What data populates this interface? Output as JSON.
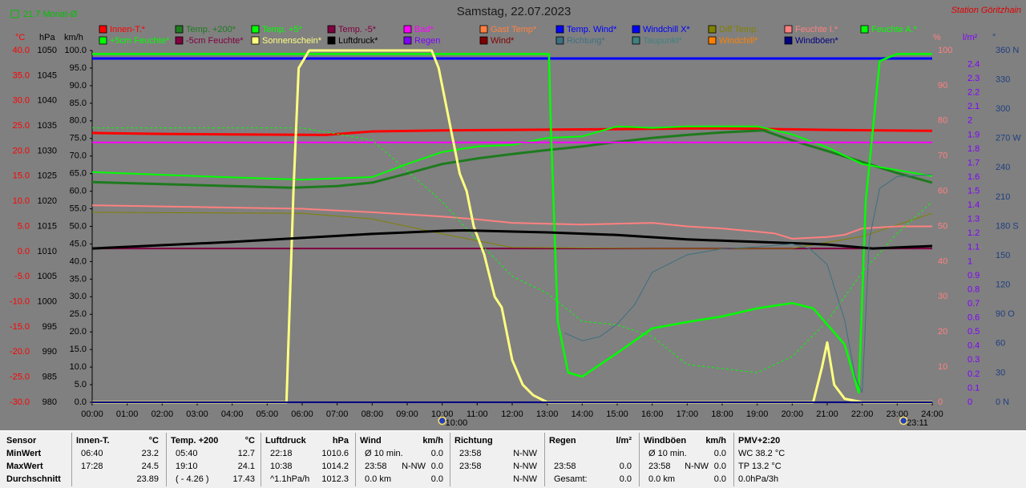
{
  "header": {
    "monthly": "21.7 Monat-Ø",
    "station": "Station Göritzhain"
  },
  "chart_data": {
    "type": "line",
    "title": "Samstag, 22.07.2023",
    "xlim": [
      0,
      24
    ],
    "xticks": [
      {
        "value": 0,
        "label": "00:00"
      },
      {
        "value": 1,
        "label": "01:00"
      },
      {
        "value": 2,
        "label": "02:00"
      },
      {
        "value": 3,
        "label": "03:00"
      },
      {
        "value": 4,
        "label": "04:00"
      },
      {
        "value": 5,
        "label": "05:00"
      },
      {
        "value": 6,
        "label": "06:00"
      },
      {
        "value": 7,
        "label": "07:00"
      },
      {
        "value": 8,
        "label": "08:00"
      },
      {
        "value": 9,
        "label": "09:00"
      },
      {
        "value": 10,
        "label": "10:00"
      },
      {
        "value": 11,
        "label": "11:00"
      },
      {
        "value": 12,
        "label": "12:00"
      },
      {
        "value": 13,
        "label": "13:00"
      },
      {
        "value": 14,
        "label": "14:00"
      },
      {
        "value": 15,
        "label": "15:00"
      },
      {
        "value": 16,
        "label": "16:00"
      },
      {
        "value": 17,
        "label": "17:00"
      },
      {
        "value": 18,
        "label": "18:00"
      },
      {
        "value": 19,
        "label": "19:00"
      },
      {
        "value": 20,
        "label": "20:00"
      },
      {
        "value": 21,
        "label": "21:00"
      },
      {
        "value": 22,
        "label": "22:00"
      },
      {
        "value": 23,
        "label": "23:00"
      },
      {
        "value": 24,
        "label": "24:00"
      }
    ],
    "markers": [
      {
        "x": 10,
        "label": "10:00"
      },
      {
        "x": 23.18,
        "label": "23:11"
      }
    ],
    "ylabel": "km/h",
    "ycolor": "#000000",
    "ylim": [
      0,
      100
    ],
    "yticks": [
      {
        "value": 0,
        "label": "0.0"
      },
      {
        "value": 5,
        "label": "5.0"
      },
      {
        "value": 10,
        "label": "10.0"
      },
      {
        "value": 15,
        "label": "15.0"
      },
      {
        "value": 20,
        "label": "20.0"
      },
      {
        "value": 25,
        "label": "25.0"
      },
      {
        "value": 30,
        "label": "30.0"
      },
      {
        "value": 35,
        "label": "35.0"
      },
      {
        "value": 40,
        "label": "40.0"
      },
      {
        "value": 45,
        "label": "45.0"
      },
      {
        "value": 50,
        "label": "50.0"
      },
      {
        "value": 55,
        "label": "55.0"
      },
      {
        "value": 60,
        "label": "60.0"
      },
      {
        "value": 65,
        "label": "65.0"
      },
      {
        "value": 70,
        "label": "70.0"
      },
      {
        "value": 75,
        "label": "75.0"
      },
      {
        "value": 80,
        "label": "80.0"
      },
      {
        "value": 85,
        "label": "85.0"
      },
      {
        "value": 90,
        "label": "90.0"
      },
      {
        "value": 95,
        "label": "95.0"
      },
      {
        "value": 100,
        "label": "100.0"
      }
    ],
    "y2label": "°C",
    "y2color": "#ff0000",
    "y2lim": [
      -30,
      40
    ],
    "y2ticks": [
      {
        "value": -30,
        "label": "-30.0"
      },
      {
        "value": -25,
        "label": "-25.0"
      },
      {
        "value": -20,
        "label": "-20.0"
      },
      {
        "value": -15,
        "label": "-15.0"
      },
      {
        "value": -10,
        "label": "-10.0"
      },
      {
        "value": -5,
        "label": "-5.0"
      },
      {
        "value": 0,
        "label": "0.0"
      },
      {
        "value": 5,
        "label": "5.0"
      },
      {
        "value": 10,
        "label": "10.0"
      },
      {
        "value": 15,
        "label": "15.0"
      },
      {
        "value": 20,
        "label": "20.0"
      },
      {
        "value": 25,
        "label": "25.0"
      },
      {
        "value": 30,
        "label": "30.0"
      },
      {
        "value": 35,
        "label": "35.0"
      },
      {
        "value": 40,
        "label": "40.0"
      }
    ],
    "y3label": "hPa",
    "y3color": "#000000",
    "y3lim": [
      980,
      1050
    ],
    "y3ticks": [
      980,
      985,
      990,
      995,
      1000,
      1005,
      1010,
      1015,
      1020,
      1025,
      1030,
      1035,
      1040,
      1045,
      1050
    ],
    "y4label": "%",
    "y4color": "#ff8080",
    "y4lim": [
      0,
      100
    ],
    "y4ticks": [
      0,
      10,
      20,
      30,
      40,
      50,
      60,
      70,
      80,
      90,
      100
    ],
    "y5label": "l/m²",
    "y5color": "#8000ff",
    "y5lim": [
      0,
      2.5
    ],
    "y5ticks": [
      0,
      0.1,
      0.2,
      0.3,
      0.4,
      0.5,
      0.6,
      0.7,
      0.8,
      0.9,
      1,
      1.1,
      1.2,
      1.3,
      1.4,
      1.5,
      1.6,
      1.7,
      1.8,
      1.9,
      2,
      2.1,
      2.2,
      2.3,
      2.4
    ],
    "y6label": "°",
    "y6color": "#1f3f7f",
    "y6lim": [
      0,
      360
    ],
    "y6ticks": [
      {
        "value": 0,
        "label": "0 N"
      },
      {
        "value": 30,
        "label": "30"
      },
      {
        "value": 60,
        "label": "60"
      },
      {
        "value": 90,
        "label": "90 O"
      },
      {
        "value": 120,
        "label": "120"
      },
      {
        "value": 150,
        "label": "150"
      },
      {
        "value": 180,
        "label": "180 S"
      },
      {
        "value": 210,
        "label": "210"
      },
      {
        "value": 240,
        "label": "240"
      },
      {
        "value": 270,
        "label": "270 W"
      },
      {
        "value": 300,
        "label": "300"
      },
      {
        "value": 330,
        "label": "330"
      },
      {
        "value": 360,
        "label": "360 N"
      }
    ],
    "series": [
      {
        "name": "Innen-T.*",
        "color": "#ff0000",
        "axis": "y2",
        "x": [
          0,
          2,
          4,
          6.67,
          8,
          10,
          12,
          14,
          16,
          17.47,
          19,
          21,
          24
        ],
        "values": [
          23.6,
          23.4,
          23.3,
          23.2,
          23.9,
          24.1,
          24.2,
          24.3,
          24.4,
          24.5,
          24.4,
          24.2,
          24.0
        ]
      },
      {
        "name": "Temp. +200*",
        "color": "#1e7a1e",
        "axis": "y2",
        "x": [
          0,
          2,
          4,
          5.67,
          7,
          8,
          9,
          10,
          11,
          12,
          13,
          14,
          15,
          16,
          17,
          18,
          19.17,
          20,
          21,
          22,
          23,
          24
        ],
        "values": [
          13.8,
          13.4,
          13.0,
          12.7,
          13.0,
          13.7,
          15.5,
          17.4,
          18.5,
          19.4,
          20.2,
          20.9,
          21.8,
          22.6,
          23.2,
          23.7,
          24.1,
          22.1,
          20.0,
          17.8,
          15.6,
          13.7
        ]
      },
      {
        "name": "Temp. +5*",
        "color": "#00ff00",
        "axis": "y2",
        "x": [
          0,
          3,
          6,
          8,
          9,
          10,
          11,
          12,
          13,
          14,
          15,
          16,
          17,
          18,
          19,
          20,
          21,
          22,
          23,
          24
        ],
        "values": [
          15.8,
          15.0,
          14.3,
          14.8,
          17.4,
          19.8,
          20.9,
          21.2,
          22.6,
          22.9,
          24.9,
          24.6,
          24.9,
          24.9,
          24.9,
          23.3,
          20.7,
          17.4,
          16.2,
          15.0
        ]
      },
      {
        "name": "Temp. -5*",
        "color": "#800040",
        "axis": "y2",
        "x": [
          0,
          24
        ],
        "values": [
          0.6,
          0.6
        ]
      },
      {
        "name": "Bad*",
        "color": "#ff00ff",
        "axis": "y2",
        "x": [
          0,
          24
        ],
        "values": [
          21.7,
          21.7
        ]
      },
      {
        "name": "Gast Temp*",
        "color": "#ff8040",
        "axis": "y2",
        "x": [],
        "values": []
      },
      {
        "name": "Temp. Wind*",
        "color": "#0000ff",
        "axis": "y2",
        "x": [
          0,
          24
        ],
        "values": [
          38.4,
          38.4
        ]
      },
      {
        "name": "Windchill X*",
        "color": "#0000ff",
        "axis": "y2",
        "x": [],
        "values": []
      },
      {
        "name": "Diff Temp.",
        "color": "#808000",
        "axis": "y2",
        "x": [
          0,
          6,
          8,
          10,
          12,
          16,
          20,
          22,
          24
        ],
        "values": [
          7.8,
          7.6,
          6.5,
          3.5,
          0.8,
          0.6,
          0.6,
          3.0,
          7.6
        ]
      },
      {
        "name": "Feuchte I.*",
        "color": "#ff8080",
        "axis": "y4",
        "x": [
          0,
          6,
          8,
          10,
          11,
          12,
          14,
          16,
          17,
          18,
          19,
          19.5,
          20,
          21,
          21.5,
          22,
          23,
          24
        ],
        "values": [
          56,
          55,
          54,
          52.8,
          52,
          51,
          50.5,
          51,
          50,
          49.4,
          48.5,
          48,
          46.5,
          47,
          47.6,
          49.4,
          50,
          50
        ]
      },
      {
        "name": "Feuchte A.*",
        "color": "#00ff00",
        "axis": "y4",
        "x": [
          0,
          13.05,
          13.1,
          13.3,
          13.6,
          14,
          15,
          16,
          17,
          18,
          19,
          20,
          20.6,
          21.5,
          21.9,
          22.1,
          22.5,
          23,
          24
        ],
        "values": [
          99,
          99,
          80,
          23,
          8.4,
          7.3,
          14,
          21,
          22.8,
          24.4,
          26.7,
          28.2,
          26.7,
          16.4,
          2.7,
          57,
          97,
          99,
          99
        ]
      },
      {
        "name": "+5cm Feuchte*",
        "color": "#00ff00",
        "axis": "y4",
        "style": "dashed",
        "x": [
          0,
          6,
          8,
          10,
          11,
          12,
          13,
          14,
          15,
          16,
          17,
          18,
          19,
          20,
          21,
          22,
          23,
          24
        ],
        "values": [
          78,
          78,
          74.5,
          57,
          46,
          35.8,
          31,
          23,
          22,
          18.7,
          10.7,
          9.6,
          8.4,
          13,
          23,
          37,
          48,
          57
        ]
      },
      {
        "name": "-5cm Feuchte*",
        "color": "#800040",
        "axis": "y4",
        "x": [],
        "values": []
      },
      {
        "name": "Sonnenschein*",
        "color": "#ffff80",
        "axis": "y4",
        "x": [
          0,
          5.55,
          5.75,
          5.9,
          6.2,
          9.7,
          9.9,
          10.2,
          10.5,
          10.7,
          10.9,
          11.2,
          11.5,
          11.7,
          12.0,
          12.3,
          12.6,
          13,
          20.6,
          20.85,
          21.0,
          21.2,
          21.5,
          22,
          24
        ],
        "values": [
          0,
          0,
          60,
          95,
          100,
          100,
          95,
          80,
          65,
          60,
          50,
          42,
          30,
          27,
          12,
          5,
          2,
          0,
          0,
          10,
          17,
          5,
          1,
          0,
          0
        ]
      },
      {
        "name": "Luftdruck*",
        "color": "#000000",
        "axis": "y3",
        "x": [
          0,
          4,
          6,
          8,
          10,
          10.63,
          13,
          15,
          17,
          19,
          21,
          22.3,
          24
        ],
        "values": [
          1010.6,
          1011.9,
          1012.7,
          1013.5,
          1014.1,
          1014.2,
          1013.8,
          1013.3,
          1012.4,
          1011.9,
          1011.4,
          1010.6,
          1011.1
        ]
      },
      {
        "name": "Regen",
        "color": "#8000ff",
        "axis": "y5",
        "x": [
          0,
          24
        ],
        "values": [
          0,
          0
        ]
      },
      {
        "name": "Wind*",
        "color": "#800000",
        "axis": "y",
        "x": [
          0,
          24
        ],
        "values": [
          0,
          0
        ]
      },
      {
        "name": "Richtung*",
        "color": "#3d6f80",
        "axis": "y6",
        "x": [
          13.5,
          14,
          14.5,
          15,
          15.5,
          16,
          17,
          18,
          19,
          20,
          20.5,
          21,
          21.5,
          21.8,
          22,
          22.2,
          22.5,
          23,
          24
        ],
        "values": [
          71,
          63,
          67,
          80,
          100,
          133,
          151,
          157,
          159,
          162,
          157,
          141,
          84,
          26,
          10,
          166,
          219,
          231,
          233
        ]
      },
      {
        "name": "Taupunkt*",
        "color": "#408080",
        "axis": "y2",
        "x": [],
        "values": []
      },
      {
        "name": "Windchill*",
        "color": "#ff8000",
        "axis": "y2",
        "x": [],
        "values": []
      },
      {
        "name": "Windböen*",
        "color": "#000080",
        "axis": "y",
        "x": [
          0,
          24
        ],
        "values": [
          0,
          0
        ]
      }
    ]
  },
  "stats_table": {
    "columns": [
      {
        "title": "Sensor",
        "rows": [
          {
            "left": "MinWert"
          },
          {
            "left": "MaxWert"
          },
          {
            "left": "Durchschnitt"
          }
        ]
      },
      {
        "title": "Innen-T.",
        "unit": "°C",
        "rows": [
          {
            "left": "06:40",
            "right": "23.2"
          },
          {
            "left": "17:28",
            "right": "24.5"
          },
          {
            "right": "23.89"
          }
        ]
      },
      {
        "title": "Temp. +200",
        "unit": "°C",
        "rows": [
          {
            "left": "05:40",
            "right": "12.7"
          },
          {
            "left": "19:10",
            "right": "24.1"
          },
          {
            "left": "( - 4.26 )",
            "right": "17.43"
          }
        ]
      },
      {
        "title": "Luftdruck",
        "unit": "hPa",
        "rows": [
          {
            "left": "22:18",
            "right": "1010.6"
          },
          {
            "left": "10:38",
            "right": "1014.2"
          },
          {
            "left": "^1.1hPa/h",
            "right": "1012.3"
          }
        ]
      },
      {
        "title": "Wind",
        "unit": "km/h",
        "rows": [
          {
            "left": "Ø 10 min.",
            "right": "0.0"
          },
          {
            "left": "23:58",
            "mid": "N-NW",
            "right": "0.0"
          },
          {
            "left": "0.0 km",
            "right": "0.0"
          }
        ]
      },
      {
        "title": "Richtung",
        "rows": [
          {
            "left": "23:58",
            "right": "N-NW"
          },
          {
            "left": "23:58",
            "right": "N-NW"
          },
          {
            "right": "N-NW"
          }
        ]
      },
      {
        "title": "Regen",
        "unit": "l/m²",
        "rows": [
          {},
          {
            "left": "23:58",
            "right": "0.0"
          },
          {
            "left": "Gesamt:",
            "right": "0.0"
          }
        ]
      },
      {
        "title": "Windböen",
        "unit": "km/h",
        "rows": [
          {
            "left": "Ø 10 min.",
            "right": "0.0"
          },
          {
            "left": "23:58",
            "mid": "N-NW",
            "right": "0.0"
          },
          {
            "left": "0.0 km",
            "right": "0.0"
          }
        ]
      },
      {
        "title": "PMV+2:20",
        "rows": [
          {
            "left": "WC 38.2 °C"
          },
          {
            "left": "TP 13.2 °C"
          },
          {
            "left": "0.0hPa/3h"
          }
        ]
      }
    ]
  }
}
